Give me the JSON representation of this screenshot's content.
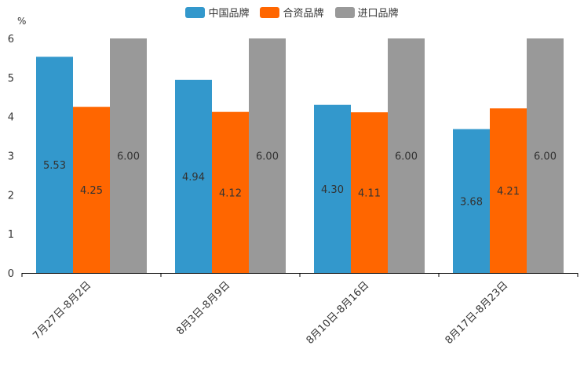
{
  "chart_data": {
    "type": "bar",
    "unit_label": "%",
    "categories": [
      "7月27日-8月2日",
      "8月3日-8月9日",
      "8月10日-8月16日",
      "8月17日-8月23日"
    ],
    "series": [
      {
        "name": "中国品牌",
        "color": "#3398cc",
        "values": [
          5.53,
          4.94,
          4.3,
          3.68
        ],
        "labels": [
          "5.53",
          "4.94",
          "4.30",
          "3.68"
        ]
      },
      {
        "name": "合资品牌",
        "color": "#ff6600",
        "values": [
          4.25,
          4.12,
          4.11,
          4.21
        ],
        "labels": [
          "4.25",
          "4.12",
          "4.11",
          "4.21"
        ]
      },
      {
        "name": "进口品牌",
        "color": "#999999",
        "values": [
          6.0,
          6.0,
          6.0,
          6.0
        ],
        "labels": [
          "6.00",
          "6.00",
          "6.00",
          "6.00"
        ]
      }
    ],
    "ylim": [
      0,
      6
    ],
    "yticks": [
      "0",
      "1",
      "2",
      "3",
      "4",
      "5",
      "6"
    ],
    "legend_position": "top-center",
    "grid": false
  }
}
